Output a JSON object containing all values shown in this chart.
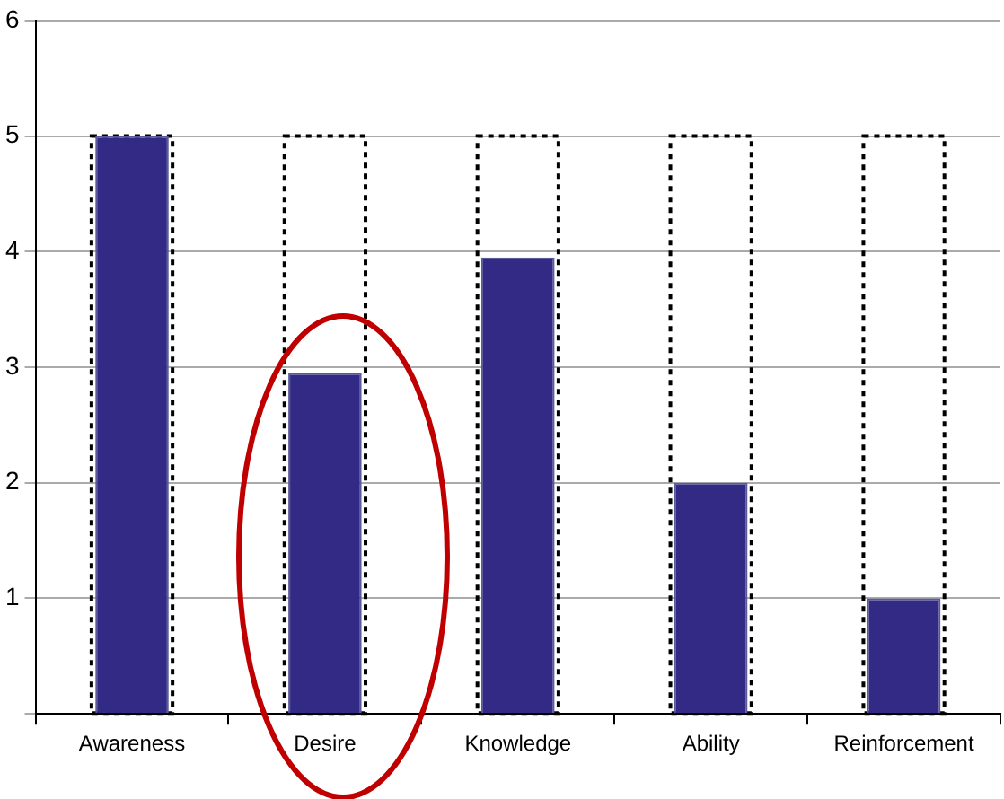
{
  "chart_data": {
    "type": "bar",
    "categories": [
      "Awareness",
      "Desire",
      "Knowledge",
      "Ability",
      "Reinforcement"
    ],
    "series": [
      {
        "color": "#000000",
        "line_style": "dashed",
        "values": [
          5,
          5,
          5,
          5,
          5
        ]
      },
      {
        "color": "#332a85",
        "values": [
          5,
          2.95,
          3.95,
          2,
          1
        ]
      }
    ],
    "ylim": [
      0,
      6
    ],
    "yticks": [
      {
        "value": 0,
        "label": null
      },
      1,
      2,
      3,
      4,
      5,
      6
    ],
    "grid": "y",
    "legend": false
  }
}
